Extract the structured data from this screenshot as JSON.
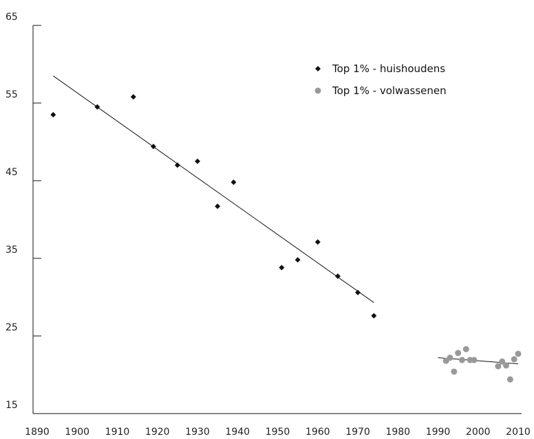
{
  "chart_data": {
    "type": "scatter",
    "xlim": [
      1890,
      2010
    ],
    "ylim": [
      15,
      65
    ],
    "x_ticks": [
      1890,
      1900,
      1910,
      1920,
      1930,
      1940,
      1950,
      1960,
      1970,
      1980,
      1990,
      2000,
      2010
    ],
    "y_ticks": [
      15,
      25,
      35,
      45,
      55,
      65
    ],
    "grid": false,
    "legend_position": "top-right",
    "series": [
      {
        "name": "Top 1% - huishoudens",
        "marker": "diamond",
        "color": "#111111",
        "points": [
          [
            1894,
            53.5
          ],
          [
            1905,
            54.5
          ],
          [
            1914,
            55.8
          ],
          [
            1919,
            49.4
          ],
          [
            1925,
            47.0
          ],
          [
            1930,
            47.5
          ],
          [
            1935,
            41.7
          ],
          [
            1939,
            44.8
          ],
          [
            1951,
            33.8
          ],
          [
            1955,
            34.8
          ],
          [
            1960,
            37.1
          ],
          [
            1965,
            32.7
          ],
          [
            1970,
            30.6
          ],
          [
            1974,
            27.6
          ]
        ],
        "trend": [
          [
            1894,
            58.5
          ],
          [
            1974,
            29.3
          ]
        ]
      },
      {
        "name": "Top 1% - volwassenen",
        "marker": "circle",
        "color": "#999999",
        "points": [
          [
            1992,
            21.8
          ],
          [
            1993,
            22.2
          ],
          [
            1994,
            20.4
          ],
          [
            1995,
            22.8
          ],
          [
            1996,
            21.9
          ],
          [
            1997,
            23.3
          ],
          [
            1998,
            21.9
          ],
          [
            1999,
            21.9
          ],
          [
            2005,
            21.1
          ],
          [
            2006,
            21.7
          ],
          [
            2007,
            21.2
          ],
          [
            2008,
            19.4
          ],
          [
            2009,
            22.0
          ],
          [
            2010,
            22.7
          ]
        ],
        "trend": [
          [
            1990,
            22.2
          ],
          [
            2010,
            21.4
          ]
        ]
      }
    ]
  }
}
